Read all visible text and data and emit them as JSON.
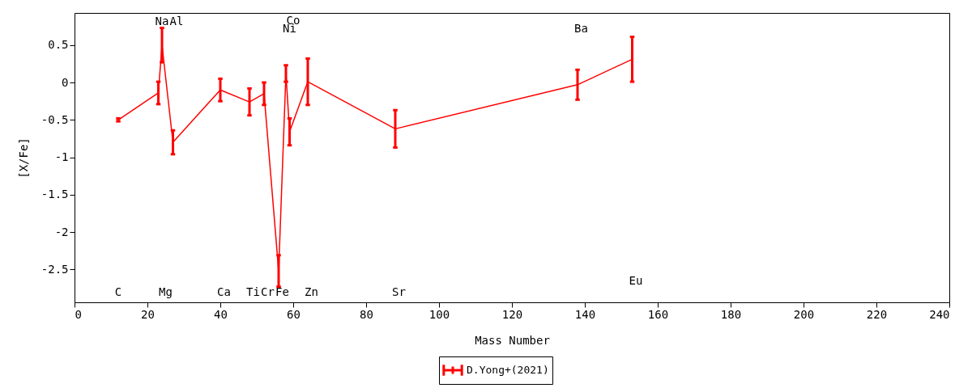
{
  "chart_data": {
    "type": "line",
    "xlabel": "Mass Number",
    "ylabel": "[X/Fe]",
    "x": [
      12,
      23,
      24,
      27,
      40,
      48,
      52,
      56,
      58,
      59,
      64,
      88,
      138,
      153
    ],
    "series": [
      {
        "name": "D.Yong+(2021)",
        "color": "#ff0000",
        "values": [
          -0.5,
          -0.14,
          0.5,
          -0.8,
          -0.1,
          -0.26,
          -0.15,
          -2.52,
          0.12,
          -0.66,
          0.01,
          -0.62,
          -0.03,
          0.31
        ],
        "errors": [
          0.02,
          0.15,
          0.23,
          0.16,
          0.15,
          0.18,
          0.15,
          0.21,
          0.11,
          0.18,
          0.31,
          0.25,
          0.2,
          0.3
        ]
      }
    ],
    "xlim": [
      0,
      240
    ],
    "xticks": [
      0,
      20,
      40,
      60,
      80,
      100,
      120,
      140,
      160,
      180,
      200,
      220,
      240
    ],
    "ylim": [
      -2.94,
      0.93
    ],
    "yticks": [
      -2.5,
      -2,
      -1.5,
      -1,
      -0.5,
      0,
      0.5
    ],
    "annotations": [
      "C",
      "Na",
      "Mg",
      "Al",
      "Ca",
      "Ti",
      "Cr",
      "Fe",
      "Ni",
      "Co",
      "Zn",
      "Sr",
      "Ba",
      "Eu"
    ],
    "grid": false,
    "legend": "bottom"
  }
}
